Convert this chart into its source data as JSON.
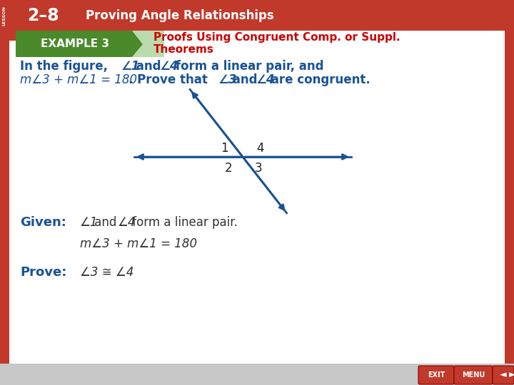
{
  "bg_color": "#f0f0f0",
  "header_bg": "#c0392b",
  "header_text": "Proving Angle Relationships",
  "lesson_num": "2–8",
  "example_label": "EXAMPLE 3",
  "example_title_line1": "Proofs Using Congruent Comp. or Suppl.",
  "example_title_line2": "Theorems",
  "blue": "#1a5296",
  "red_title": "#cc0000",
  "green_box_top": "#5a9e3a",
  "green_box_bottom": "#2d6e1a",
  "body1_normal": "In the figure, ",
  "body1_bold_end": " form a linear pair, and",
  "body2_italic": "m∠3 + m∠1 = 180",
  "body2_bold": ". Prove that ∠3 and ∠4 are congruent.",
  "given_label": "Given:",
  "given_text1": "∠1 and ∠4 form a linear pair.",
  "given_text2": "m∠3 + m∠1 = 180",
  "prove_label": "Prove:",
  "prove_text": "∠3 ≅ ∠4",
  "nav_bg": "#d0d0d0",
  "nav_btn_color": "#c0392b"
}
